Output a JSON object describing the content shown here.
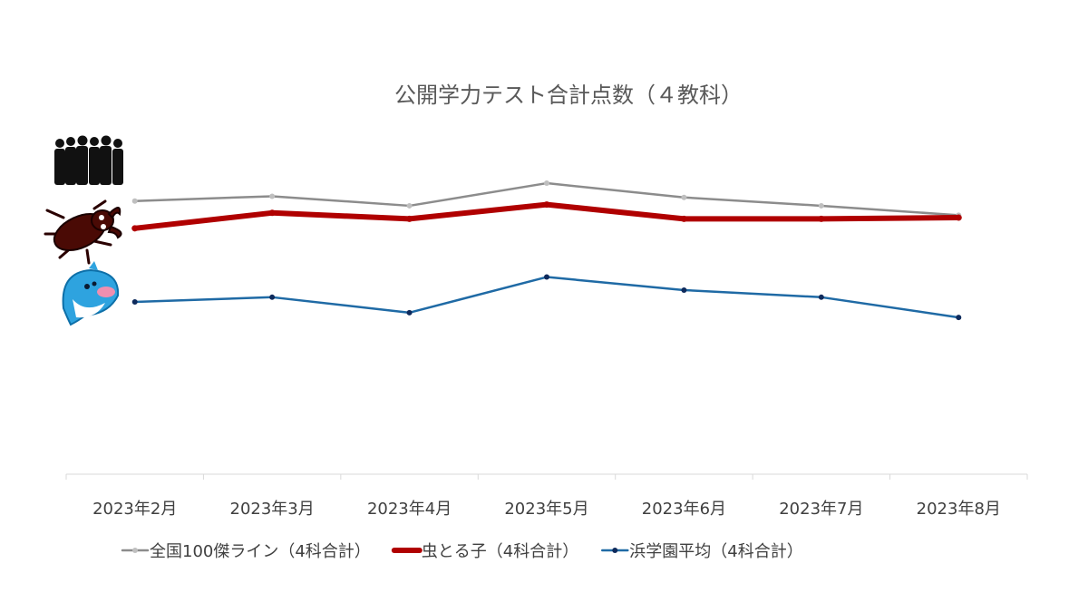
{
  "chart_data": {
    "type": "line",
    "title": "公開学力テスト合計点数（４教科）",
    "categories": [
      "2023年2月",
      "2023年3月",
      "2023年4月",
      "2023年5月",
      "2023年6月",
      "2023年7月",
      "2023年8月"
    ],
    "series": [
      {
        "name": "全国100傑ライン（4科合計）",
        "values": [
          330,
          334,
          326,
          345,
          333,
          326,
          318
        ],
        "color": "#8c8c8c",
        "marker_color": "#bfbfbf",
        "style": "thin"
      },
      {
        "name": "虫とる子（4科合計）",
        "values": [
          307,
          320,
          315,
          327,
          315,
          315,
          316
        ],
        "color": "#b00000",
        "marker_color": "#b00000",
        "style": "thick"
      },
      {
        "name": "浜学園平均（4科合計）",
        "values": [
          245,
          249,
          236,
          266,
          255,
          249,
          232
        ],
        "color": "#1f6aa5",
        "marker_color": "#0e2a5c",
        "style": "thin"
      }
    ],
    "ylim": [
      100,
      400
    ],
    "grid": false,
    "y_axis_visible": false,
    "legend_position": "bottom",
    "icons": [
      "crowd-silhouette-icon",
      "stag-beetle-icon",
      "dolphin-mascot-icon"
    ]
  }
}
